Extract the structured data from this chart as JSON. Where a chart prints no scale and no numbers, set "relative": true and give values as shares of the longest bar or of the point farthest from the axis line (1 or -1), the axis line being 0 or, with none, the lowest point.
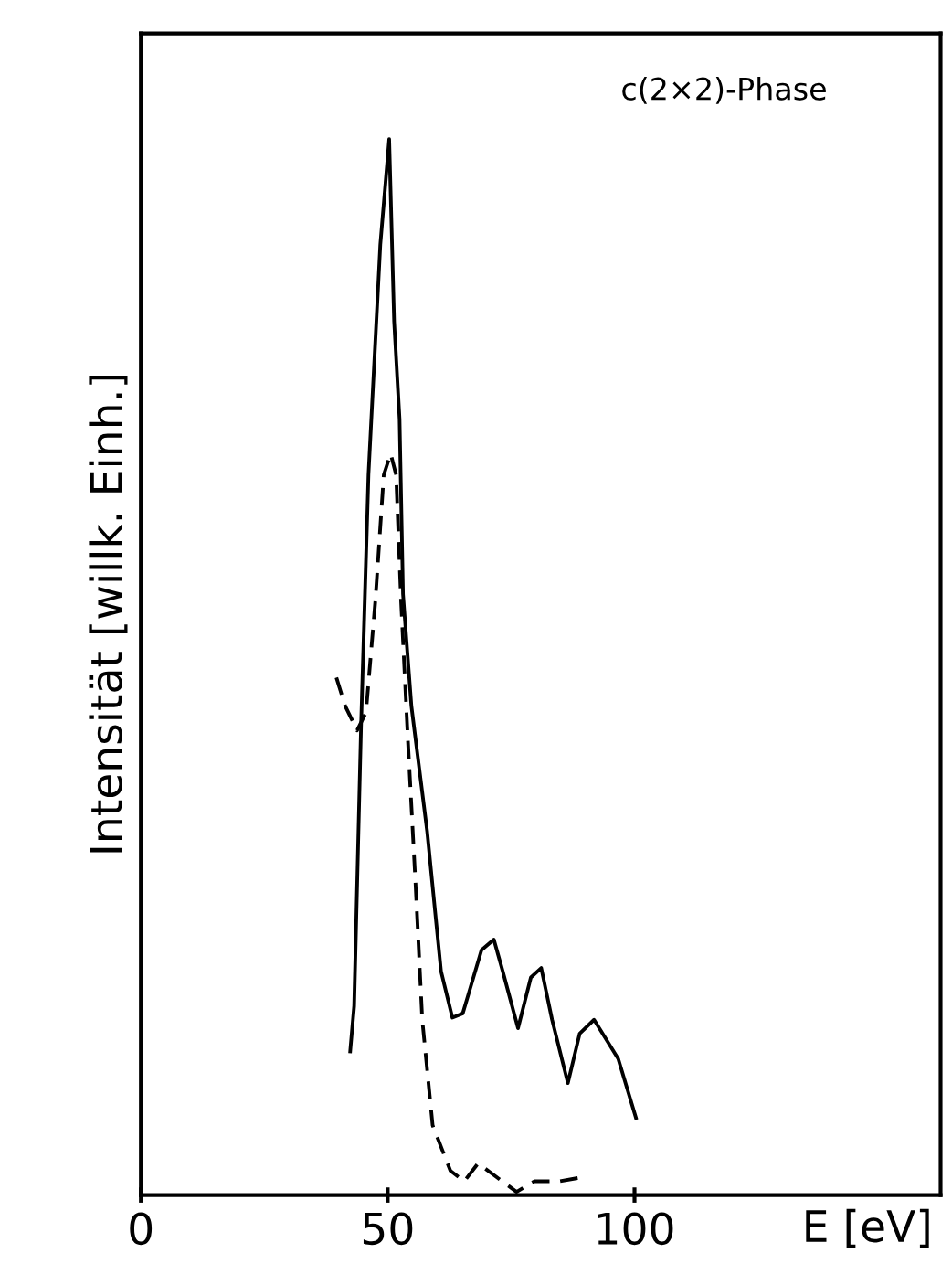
{
  "chart_data": {
    "type": "line",
    "xlabel": "E [eV]",
    "ylabel": "Intensität [willk. Einh.]",
    "relative": true,
    "xlim": [
      0,
      162
    ],
    "xticks": [
      0,
      50,
      100
    ],
    "grid": false,
    "legend": false,
    "annotations": [
      "c(2×2)-Phase"
    ],
    "series": [
      {
        "color": "#000000",
        "line_style": "solid",
        "x": [
          42.4,
          43.2,
          44.6,
          46.1,
          48.5,
          50.3,
          51.3,
          52.4,
          53.1,
          54.8,
          58.0,
          60.8,
          63.1,
          65.2,
          69.0,
          71.5,
          73.3,
          76.4,
          79.0,
          81.1,
          83.3,
          86.5,
          88.9,
          91.8,
          96.7,
          100.3
        ],
        "values": [
          0.136,
          0.179,
          0.444,
          0.682,
          0.9,
          1.0,
          0.827,
          0.735,
          0.569,
          0.463,
          0.344,
          0.212,
          0.168,
          0.172,
          0.232,
          0.242,
          0.212,
          0.158,
          0.206,
          0.215,
          0.166,
          0.106,
          0.153,
          0.166,
          0.129,
          0.073
        ]
      },
      {
        "color": "#000000",
        "line_style": "dashed",
        "x": [
          39.6,
          41.4,
          43.8,
          45.6,
          47.5,
          49.2,
          50.6,
          51.7,
          52.7,
          54.1,
          55.6,
          57.0,
          59.1,
          62.7,
          65.5,
          68.3,
          71.2,
          76.1,
          79.7,
          84.7,
          89.6
        ],
        "values": [
          0.49,
          0.463,
          0.44,
          0.457,
          0.563,
          0.682,
          0.702,
          0.682,
          0.563,
          0.43,
          0.298,
          0.166,
          0.066,
          0.023,
          0.013,
          0.03,
          0.02,
          0.003,
          0.013,
          0.013,
          0.017
        ]
      }
    ]
  }
}
